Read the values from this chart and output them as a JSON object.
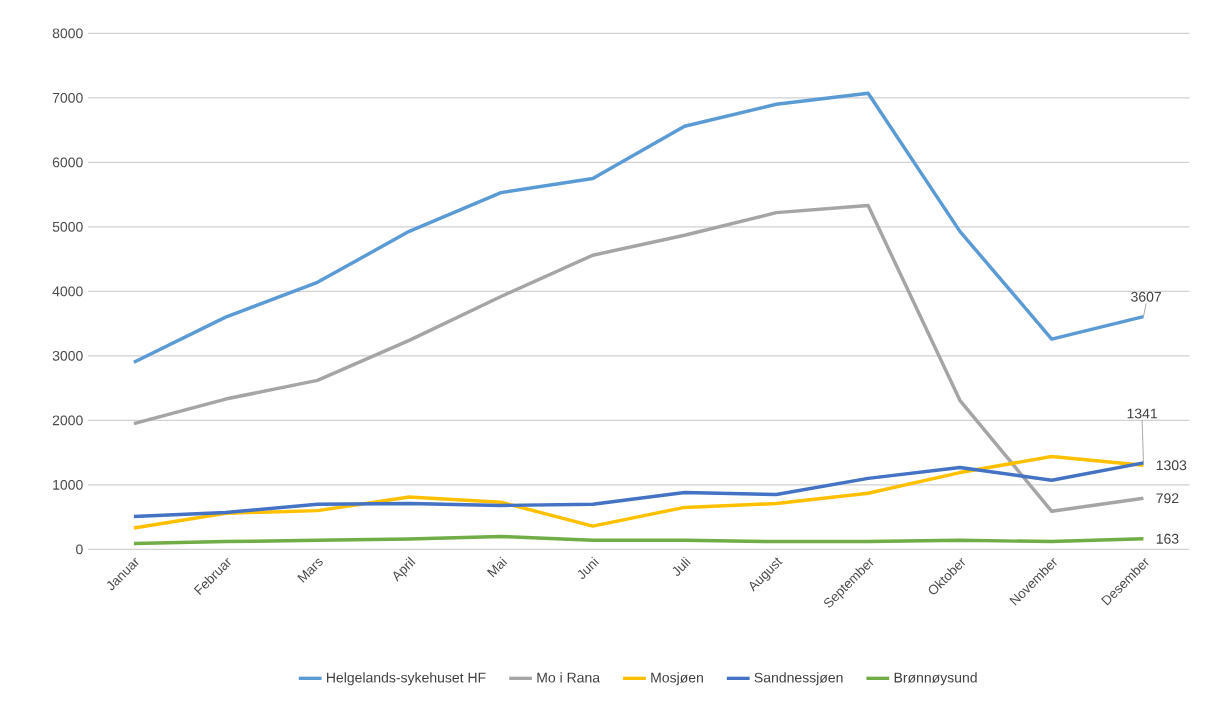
{
  "chart_data": {
    "type": "line",
    "categories": [
      "Januar",
      "Februar",
      "Mars",
      "April",
      "Mai",
      "Juni",
      "Juli",
      "August",
      "September",
      "Oktober",
      "November",
      "Desember"
    ],
    "series": [
      {
        "name": "Helgelands-sykehuset HF",
        "color": "#5b9bd5",
        "values": [
          2900,
          3600,
          4140,
          4930,
          5530,
          5750,
          6560,
          6900,
          7070,
          4930,
          3260,
          3607
        ],
        "value_labels": [
          null,
          null,
          null,
          null,
          null,
          null,
          null,
          null,
          null,
          null,
          null,
          "3607"
        ]
      },
      {
        "name": "Mo i Rana",
        "color": "#a5a5a5",
        "values": [
          1950,
          2330,
          2620,
          3240,
          3920,
          4560,
          4870,
          5220,
          5330,
          2310,
          590,
          792
        ],
        "value_labels": [
          null,
          null,
          null,
          null,
          null,
          null,
          null,
          null,
          null,
          null,
          null,
          "792"
        ]
      },
      {
        "name": "Mosjøen",
        "color": "#ffc000",
        "values": [
          330,
          560,
          600,
          810,
          730,
          360,
          650,
          710,
          870,
          1190,
          1440,
          1303
        ],
        "value_labels": [
          null,
          null,
          null,
          null,
          null,
          null,
          null,
          null,
          null,
          null,
          null,
          "1303"
        ]
      },
      {
        "name": "Sandnessjøen",
        "color": "#4472c4",
        "values": [
          510,
          570,
          700,
          710,
          680,
          700,
          880,
          850,
          1100,
          1270,
          1070,
          1341
        ],
        "value_labels": [
          null,
          null,
          null,
          null,
          null,
          null,
          null,
          null,
          null,
          null,
          null,
          "1341"
        ]
      },
      {
        "name": "Brønnøysund",
        "color": "#70ad47",
        "values": [
          90,
          120,
          140,
          160,
          200,
          140,
          140,
          120,
          120,
          140,
          120,
          163
        ],
        "value_labels": [
          null,
          null,
          null,
          null,
          null,
          null,
          null,
          null,
          null,
          null,
          null,
          "163"
        ]
      }
    ],
    "ylim": [
      0,
      8000
    ],
    "yticks": [
      0,
      1000,
      2000,
      3000,
      4000,
      5000,
      6000,
      7000,
      8000
    ],
    "grid": "y",
    "legend": "bottom",
    "marker": "none",
    "line_style": "solid"
  }
}
